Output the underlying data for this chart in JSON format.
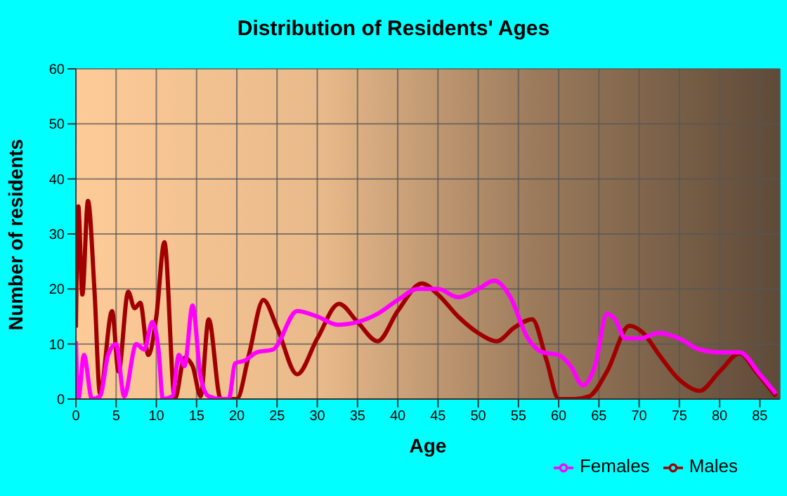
{
  "chart_data": {
    "type": "line",
    "title": "Distribution of Residents' Ages",
    "xlabel": "Age",
    "ylabel": "Number of residents",
    "xlim": [
      0,
      87.5
    ],
    "xticks": [
      0,
      5,
      10,
      15,
      20,
      25,
      30,
      35,
      40,
      45,
      50,
      55,
      60,
      65,
      70,
      75,
      80,
      85
    ],
    "ylim": [
      0,
      60
    ],
    "yticks": [
      0,
      10,
      20,
      30,
      40,
      50,
      60
    ],
    "grid": true,
    "legend": "bottom right",
    "marker": "none",
    "line_style": "solid",
    "series": [
      {
        "name": "Males",
        "color": "#a00000",
        "x": [
          0,
          0.3,
          0.8,
          1.5,
          2.3,
          3,
          4.5,
          5.3,
          6.5,
          7.3,
          8,
          9,
          10,
          11,
          12.3,
          13.5,
          14.5,
          15.5,
          16.5,
          18,
          20,
          21.5,
          23.3,
          25,
          27.5,
          30,
          32.7,
          35,
          37.5,
          40,
          43,
          45,
          47.5,
          50,
          52.3,
          54.5,
          56.7,
          58.5,
          60,
          62,
          63.8,
          66,
          68.8,
          70.5,
          72.5,
          75,
          77.5,
          80,
          82.5,
          84.5,
          87
        ],
        "values": [
          13,
          35,
          19,
          36,
          20,
          1,
          16,
          5,
          19.5,
          16.5,
          17.5,
          8,
          15,
          28.5,
          0,
          7.5,
          6,
          0.5,
          14.5,
          0,
          0,
          8,
          18,
          13,
          4.5,
          11,
          17.3,
          14,
          10.5,
          16,
          21,
          19,
          15,
          12,
          10.5,
          13,
          14.5,
          7,
          0,
          0,
          0.5,
          5,
          13.3,
          12,
          8,
          3.5,
          1.5,
          5,
          8.3,
          5,
          0.5
        ]
      },
      {
        "name": "Females",
        "color": "#ff00ff",
        "x": [
          0,
          0.3,
          1,
          2,
          3,
          4,
          5,
          6,
          7.5,
          8.5,
          9.5,
          10.3,
          10.8,
          12,
          12.8,
          13.5,
          14.5,
          15.5,
          16.5,
          18,
          19,
          19.8,
          21,
          22.5,
          24.5,
          27.5,
          30,
          32.5,
          35,
          37.5,
          40,
          42.5,
          45,
          47.5,
          50,
          52,
          54,
          56,
          58,
          60,
          61.5,
          63,
          64.5,
          66,
          67,
          68.3,
          70,
          72.5,
          75,
          77.5,
          80,
          82.5,
          85,
          87
        ],
        "values": [
          10.5,
          0,
          8,
          0,
          0.5,
          8,
          10,
          0.5,
          10,
          9,
          14,
          8.5,
          0,
          0.5,
          8,
          6,
          17,
          4,
          0.5,
          0,
          0,
          6.5,
          7,
          8.5,
          9,
          16,
          15,
          13.5,
          14,
          15.5,
          18,
          20,
          20,
          18.5,
          20,
          21.5,
          18.5,
          11.5,
          8.5,
          8,
          6,
          2.5,
          6,
          15.5,
          14.5,
          11,
          11,
          12,
          11,
          9,
          8.5,
          8.5,
          4.5,
          1
        ]
      }
    ]
  }
}
